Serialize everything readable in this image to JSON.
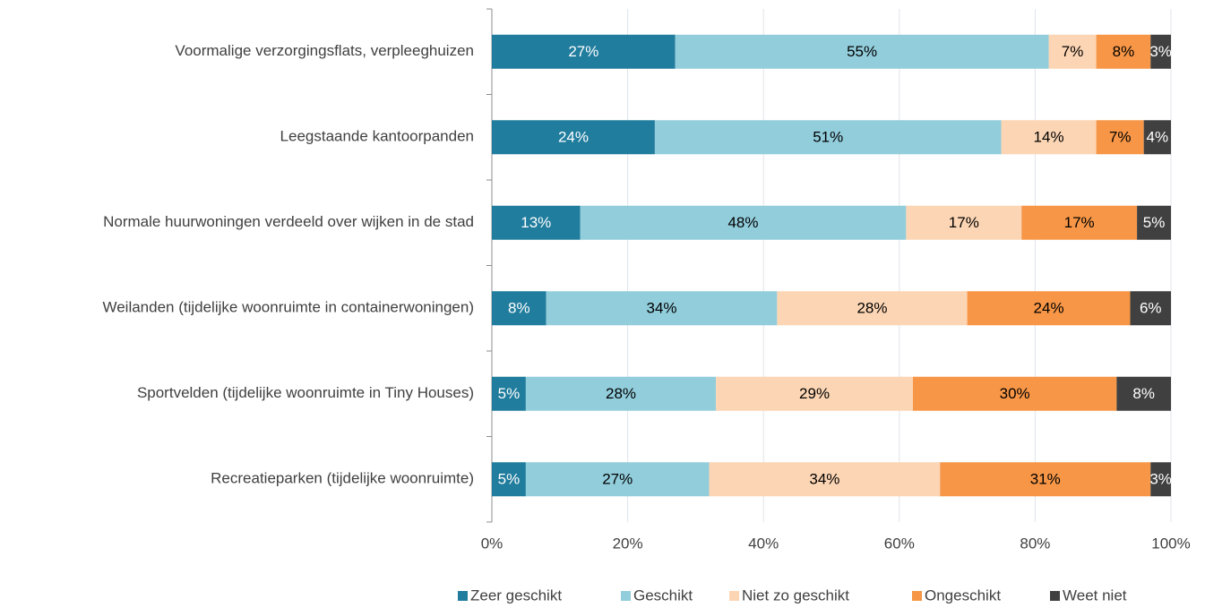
{
  "chart_data": {
    "type": "stacked_barh",
    "categories": [
      "Voormalige verzorgingsflats, verpleeghuizen",
      "Leegstaande kantoorpanden",
      "Normale huurwoningen verdeeld over wijken in de stad",
      "Weilanden (tijdelijke woonruimte in containerwoningen)",
      "Sportvelden (tijdelijke woonruimte in Tiny Houses)",
      "Recreatieparken (tijdelijke woonruimte)"
    ],
    "series": [
      {
        "name": "Zeer geschikt",
        "color": "#217d9e",
        "label_color": "#ffffff",
        "values": [
          27,
          24,
          13,
          8,
          5,
          5
        ],
        "value_labels": [
          "27%",
          "24%",
          "13%",
          "8%",
          "5%",
          "5%"
        ]
      },
      {
        "name": "Geschikt",
        "color": "#92cddc",
        "label_color": "#000000",
        "values": [
          55,
          51,
          48,
          34,
          28,
          27
        ],
        "value_labels": [
          "55%",
          "51%",
          "48%",
          "34%",
          "28%",
          "27%"
        ]
      },
      {
        "name": "Niet zo geschikt",
        "color": "#fcd5b4",
        "label_color": "#000000",
        "values": [
          7,
          14,
          17,
          28,
          29,
          34
        ],
        "value_labels": [
          "7%",
          "14%",
          "17%",
          "28%",
          "29%",
          "34%"
        ]
      },
      {
        "name": "Ongeschikt",
        "color": "#f79646",
        "label_color": "#000000",
        "values": [
          8,
          7,
          17,
          24,
          30,
          31
        ],
        "value_labels": [
          "8%",
          "7%",
          "17%",
          "24%",
          "30%",
          "31%"
        ]
      },
      {
        "name": "Weet niet",
        "color": "#404040",
        "label_color": "#ffffff",
        "values": [
          3,
          4,
          5,
          6,
          8,
          3
        ],
        "value_labels": [
          "3%",
          "4%",
          "5%",
          "6%",
          "8%",
          "3%"
        ]
      }
    ],
    "xlim": [
      0,
      100
    ],
    "xticks": [
      {
        "value": 0,
        "label": "0%"
      },
      {
        "value": 20,
        "label": "20%"
      },
      {
        "value": 40,
        "label": "40%"
      },
      {
        "value": 60,
        "label": "60%"
      },
      {
        "value": 80,
        "label": "80%"
      },
      {
        "value": 100,
        "label": "100%"
      }
    ],
    "grid": true,
    "legend": "bottom"
  }
}
